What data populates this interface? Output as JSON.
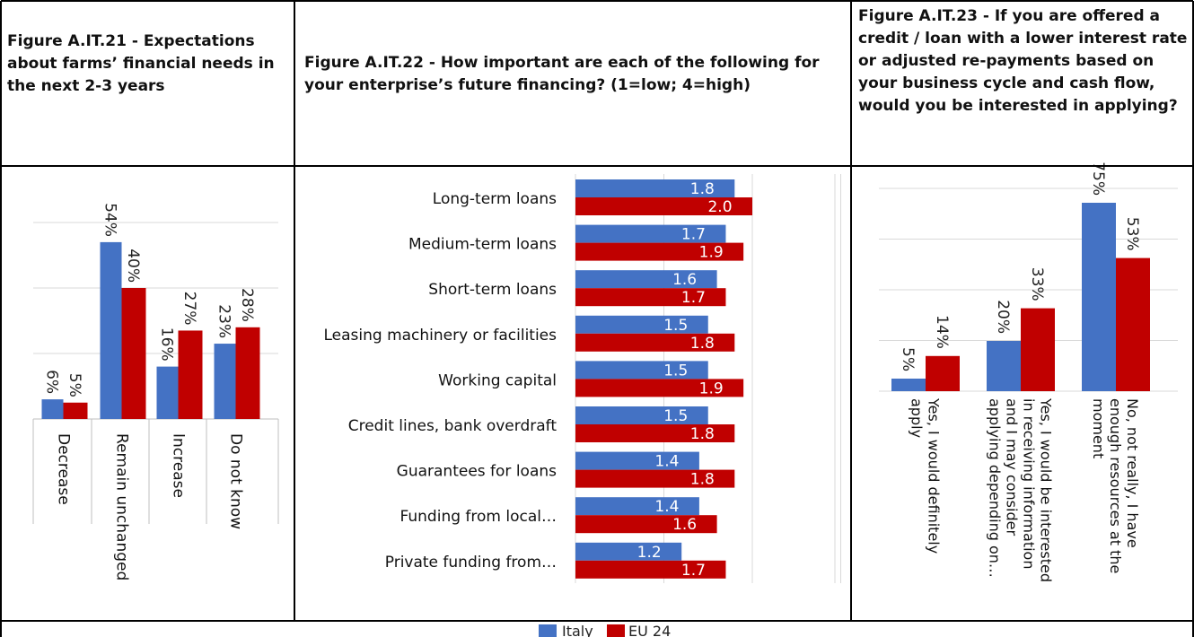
{
  "headers": {
    "fig21": "Figure A.IT.21 - Expectations about farms’ financial needs in the next 2-3 years",
    "fig22": "Figure A.IT.22 - How important are each of the following for your enterprise’s future financing? (1=low; 4=high)",
    "fig23": "Figure A.IT.23 - If you are offered a credit / loan with a lower interest rate or adjusted re-payments based on your business cycle and cash flow, would you be interested in applying?"
  },
  "legend": {
    "italy": "Italy",
    "eu": "EU 24"
  },
  "colors": {
    "italy": "#4472C4",
    "eu": "#C00000",
    "grid": "#D9D9D9",
    "border": "#000000"
  },
  "chart_data": [
    {
      "type": "bar",
      "title": "Figure A.IT.21 - Expectations about farms’ financial needs in the next 2-3 years",
      "categories": [
        "Decrease",
        "Remain unchanged",
        "Increase",
        "Do not know"
      ],
      "series": [
        {
          "name": "Italy",
          "values": [
            6,
            54,
            16,
            23
          ],
          "labels": [
            "6%",
            "54%",
            "16%",
            "23%"
          ]
        },
        {
          "name": "EU 24",
          "values": [
            5,
            40,
            27,
            28
          ],
          "labels": [
            "5%",
            "40%",
            "27%",
            "28%"
          ]
        }
      ],
      "ylim": [
        0,
        60
      ],
      "grid": true
    },
    {
      "type": "bar",
      "orientation": "horizontal",
      "title": "Figure A.IT.22 - How important are each of the following for your enterprise’s future financing? (1=low; 4=high)",
      "categories": [
        "Long-term loans",
        "Medium-term loans",
        "Short-term loans",
        "Leasing machinery or facilities",
        "Working capital",
        "Credit lines, bank overdraft",
        "Guarantees for loans",
        "Funding from local…",
        "Private funding from…"
      ],
      "series": [
        {
          "name": "Italy",
          "values": [
            1.8,
            1.7,
            1.6,
            1.5,
            1.5,
            1.5,
            1.4,
            1.4,
            1.2
          ],
          "labels": [
            "1.8",
            "1.7",
            "1.6",
            "1.5",
            "1.5",
            "1.5",
            "1.4",
            "1.4",
            "1.2"
          ]
        },
        {
          "name": "EU 24",
          "values": [
            2.0,
            1.9,
            1.7,
            1.8,
            1.9,
            1.8,
            1.8,
            1.6,
            1.7
          ],
          "labels": [
            "2.0",
            "1.9",
            "1.7",
            "1.8",
            "1.9",
            "1.8",
            "1.8",
            "1.6",
            "1.7"
          ]
        }
      ],
      "xlim": [
        0,
        3
      ],
      "grid": true
    },
    {
      "type": "bar",
      "title": "Figure A.IT.23 - If you are offered a credit / loan with a lower interest rate or adjusted re-payments based on your business cycle and cash flow, would you be interested in applying?",
      "categories": [
        [
          "Yes, I would definitely",
          "apply"
        ],
        [
          "Yes, I would be interested",
          "in receiving information",
          "and I may consider",
          "applying depending on…"
        ],
        [
          "No, not really, I have",
          "enough resources at the",
          "moment"
        ]
      ],
      "series": [
        {
          "name": "Italy",
          "values": [
            5,
            20,
            75
          ],
          "labels": [
            "5%",
            "20%",
            "75%"
          ]
        },
        {
          "name": "EU 24",
          "values": [
            14,
            33,
            53
          ],
          "labels": [
            "14%",
            "33%",
            "53%"
          ]
        }
      ],
      "ylim": [
        0,
        80
      ],
      "grid": true
    }
  ]
}
